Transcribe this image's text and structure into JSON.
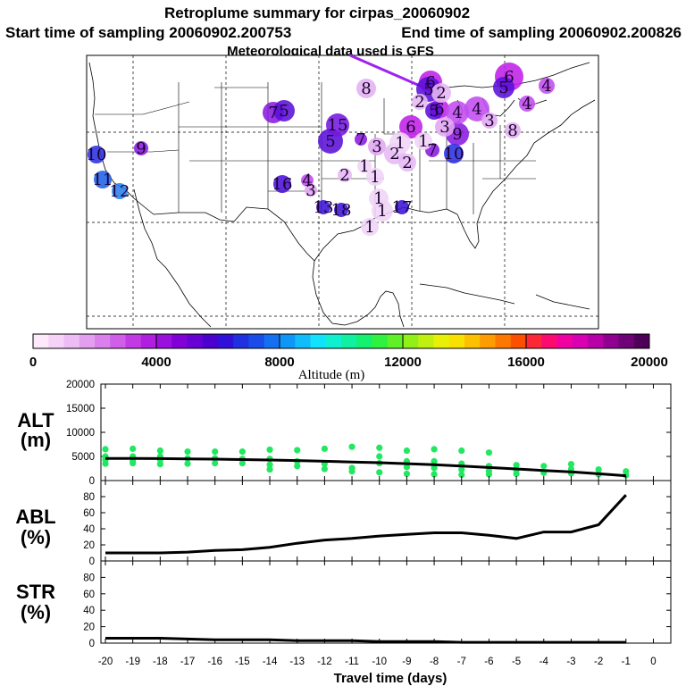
{
  "header": {
    "title": "Retroplume summary for cirpas_20060902",
    "start_label": "Start time of sampling 20060902.200753",
    "end_label": "End time of sampling 20060902.200826",
    "met_label": "Meteorological data used is GFS"
  },
  "map": {
    "description_labels": [
      {
        "text": "6",
        "color": "#c020e8"
      },
      {
        "text": "8",
        "color": "#e2b0f0"
      },
      {
        "text": "7",
        "color": "#8a1ae0"
      },
      {
        "text": "5",
        "color": "#5a10d8"
      },
      {
        "text": "15",
        "color": "#7418e0"
      },
      {
        "text": "9",
        "color": "#8a1ae0"
      },
      {
        "text": "10",
        "color": "#2b30e0"
      },
      {
        "text": "11",
        "color": "#2060e8"
      },
      {
        "text": "12",
        "color": "#2a7ef0"
      },
      {
        "text": "16",
        "color": "#4a10d8"
      },
      {
        "text": "13",
        "color": "#3a14d8"
      },
      {
        "text": "18",
        "color": "#3a14d8"
      },
      {
        "text": "17",
        "color": "#3a14d8"
      },
      {
        "text": "4",
        "color": "#c24cf0"
      },
      {
        "text": "3",
        "color": "#e0a6f0"
      },
      {
        "text": "2",
        "color": "#e6b8f2"
      },
      {
        "text": "1",
        "color": "#f0d4f6"
      }
    ]
  },
  "colorbar": {
    "colors": [
      "#fde8fc",
      "#f6d2f8",
      "#eebcf4",
      "#e49ef0",
      "#da80ec",
      "#cf5ee8",
      "#c23ae4",
      "#b01ee0",
      "#9a10dc",
      "#8200d8",
      "#6600d4",
      "#4c00d0",
      "#3010d8",
      "#2030e0",
      "#1a4ce8",
      "#1470f0",
      "#1096f6",
      "#10bcfa",
      "#12e2fc",
      "#10f0d0",
      "#10f0a0",
      "#14f070",
      "#30f040",
      "#60f028",
      "#90f018",
      "#c0f010",
      "#e8f008",
      "#f8e000",
      "#fcc000",
      "#fc9c00",
      "#fc7800",
      "#fc5000",
      "#fc2838",
      "#fc0a70",
      "#f000a0",
      "#d800b0",
      "#b800a8",
      "#900090",
      "#6e0078",
      "#4e0058"
    ],
    "tick_labels": [
      "0",
      "4000",
      "8000",
      "12000",
      "16000",
      "20000"
    ],
    "tick_values": [
      0,
      4000,
      8000,
      12000,
      16000,
      20000
    ],
    "xlabel": "Altitude (m)"
  },
  "chart_data": [
    {
      "type": "line",
      "panel": "ALT",
      "ylabel": "ALT\n(m)",
      "ylabel_line1": "ALT",
      "ylabel_line2": "(m)",
      "ylim": [
        0,
        20000
      ],
      "yticks": [
        0,
        5000,
        10000,
        15000,
        20000
      ],
      "x": [
        -20,
        -19,
        -18,
        -17,
        -16,
        -15,
        -14,
        -13,
        -12,
        -11,
        -10,
        -9,
        -8,
        -7,
        -6,
        -5,
        -4,
        -3,
        -2,
        -1
      ],
      "series": [
        {
          "name": "mean altitude",
          "color": "#000000",
          "values": [
            4600,
            4600,
            4550,
            4500,
            4450,
            4350,
            4250,
            4150,
            4000,
            3850,
            3700,
            3500,
            3300,
            3000,
            2700,
            2400,
            2100,
            1800,
            1400,
            1000
          ]
        }
      ],
      "scatter_color": "#20e860",
      "scatter_x": [
        -20,
        -20,
        -20,
        -20,
        -19,
        -19,
        -19,
        -19,
        -18,
        -18,
        -18,
        -18,
        -17,
        -17,
        -17,
        -16,
        -16,
        -16,
        -15,
        -15,
        -15,
        -14,
        -14,
        -14,
        -14,
        -13,
        -13,
        -13,
        -12,
        -12,
        -12,
        -11,
        -11,
        -11,
        -10,
        -10,
        -10,
        -10,
        -9,
        -9,
        -9,
        -9,
        -8,
        -8,
        -8,
        -8,
        -7,
        -7,
        -7,
        -7,
        -6,
        -6,
        -6,
        -6,
        -5,
        -5,
        -5,
        -4,
        -4,
        -3,
        -3,
        -3,
        -2,
        -2,
        -1,
        -1
      ],
      "scatter_y": [
        6500,
        5000,
        4300,
        3500,
        6600,
        5000,
        4000,
        3600,
        6200,
        5000,
        4300,
        3400,
        6000,
        4600,
        3500,
        6000,
        4600,
        3600,
        6000,
        4500,
        3600,
        6400,
        4500,
        3300,
        2300,
        6300,
        4000,
        3000,
        6600,
        3500,
        2400,
        7000,
        2600,
        1900,
        6800,
        5000,
        3600,
        1700,
        6200,
        4000,
        2800,
        1400,
        6500,
        4000,
        2600,
        1300,
        6200,
        3500,
        2300,
        1200,
        5800,
        3000,
        2000,
        1300,
        3200,
        2200,
        1400,
        3000,
        1600,
        3400,
        2400,
        1500,
        2300,
        1300,
        1900,
        1100
      ]
    },
    {
      "type": "line",
      "panel": "ABL",
      "ylabel_line1": "ABL",
      "ylabel_line2": "(%)",
      "ylim": [
        0,
        100
      ],
      "yticks": [
        0,
        20,
        40,
        60,
        80
      ],
      "x": [
        -20,
        -19,
        -18,
        -17,
        -16,
        -15,
        -14,
        -13,
        -12,
        -11,
        -10,
        -9,
        -8,
        -7,
        -6,
        -5,
        -4,
        -3,
        -2,
        -1
      ],
      "series": [
        {
          "name": "ABL fraction",
          "color": "#000000",
          "values": [
            10,
            10,
            10,
            11,
            13,
            14,
            17,
            22,
            26,
            28,
            31,
            33,
            35,
            35,
            32,
            28,
            36,
            36,
            45,
            82
          ]
        }
      ]
    },
    {
      "type": "line",
      "panel": "STR",
      "ylabel_line1": "STR",
      "ylabel_line2": "(%)",
      "ylim": [
        0,
        100
      ],
      "yticks": [
        0,
        20,
        40,
        60,
        80
      ],
      "x": [
        -20,
        -19,
        -18,
        -17,
        -16,
        -15,
        -14,
        -13,
        -12,
        -11,
        -10,
        -9,
        -8,
        -7,
        -6,
        -5,
        -4,
        -3,
        -2,
        -1
      ],
      "series": [
        {
          "name": "STR fraction",
          "color": "#000000",
          "values": [
            6,
            6,
            6,
            5,
            4,
            4,
            4,
            3,
            3,
            3,
            2,
            2,
            2,
            1,
            1,
            1,
            1,
            1,
            1,
            1
          ]
        }
      ]
    }
  ],
  "xaxis": {
    "tick_labels": [
      "-20",
      "-19",
      "-18",
      "-17",
      "-16",
      "-15",
      "-14",
      "-13",
      "-12",
      "-11",
      "-10",
      "-9",
      "-8",
      "-7",
      "-6",
      "-5",
      "-4",
      "-3",
      "-2",
      "-1",
      "0"
    ],
    "xlabel": "Travel time (days)"
  }
}
